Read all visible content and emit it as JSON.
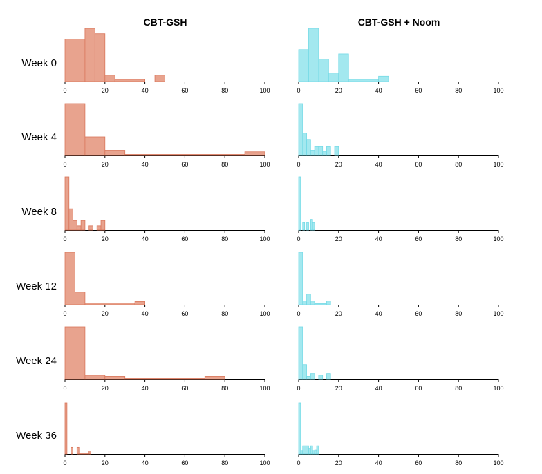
{
  "colors": {
    "cbt_gsh": "#e8a38e",
    "cbt_gsh_edge": "#d9765b",
    "noom": "#a3e8ef",
    "noom_edge": "#74dae6"
  },
  "chart_data": {
    "type": "bar",
    "subtype": "histogram-grid",
    "columns": [
      "CBT-GSH",
      "CBT-GSH + Noom"
    ],
    "rows": [
      "Week 0",
      "Week 4",
      "Week 8",
      "Week 12",
      "Week 24",
      "Week 36"
    ],
    "xlim": [
      0,
      100
    ],
    "xticks": [
      0,
      20,
      40,
      60,
      80,
      100
    ],
    "panels": [
      {
        "row": "Week 0",
        "column": "CBT-GSH",
        "bins": [
          [
            0,
            5,
            0.8
          ],
          [
            5,
            10,
            0.8
          ],
          [
            10,
            15,
            1.0
          ],
          [
            15,
            20,
            0.9
          ],
          [
            20,
            25,
            0.12
          ],
          [
            25,
            40,
            0.04
          ],
          [
            40,
            45,
            0.0
          ],
          [
            45,
            50,
            0.12
          ]
        ]
      },
      {
        "row": "Week 0",
        "column": "CBT-GSH + Noom",
        "bins": [
          [
            0,
            5,
            0.6
          ],
          [
            5,
            10,
            1.0
          ],
          [
            10,
            15,
            0.42
          ],
          [
            15,
            20,
            0.16
          ],
          [
            20,
            25,
            0.52
          ],
          [
            25,
            40,
            0.04
          ],
          [
            40,
            45,
            0.1
          ]
        ]
      },
      {
        "row": "Week 4",
        "column": "CBT-GSH",
        "bins": [
          [
            0,
            10,
            1.0
          ],
          [
            10,
            20,
            0.36
          ],
          [
            20,
            30,
            0.1
          ],
          [
            30,
            90,
            0.02
          ],
          [
            90,
            100,
            0.07
          ]
        ]
      },
      {
        "row": "Week 4",
        "column": "CBT-GSH + Noom",
        "bins": [
          [
            0,
            2,
            1.0
          ],
          [
            2,
            4,
            0.43
          ],
          [
            4,
            6,
            0.31
          ],
          [
            6,
            8,
            0.1
          ],
          [
            8,
            10,
            0.17
          ],
          [
            10,
            12,
            0.17
          ],
          [
            12,
            14,
            0.08
          ],
          [
            14,
            16,
            0.17
          ],
          [
            16,
            18,
            0.0
          ],
          [
            18,
            20,
            0.17
          ]
        ]
      },
      {
        "row": "Week 8",
        "column": "CBT-GSH",
        "bins": [
          [
            0,
            2,
            1.0
          ],
          [
            2,
            4,
            0.4
          ],
          [
            4,
            6,
            0.18
          ],
          [
            6,
            8,
            0.08
          ],
          [
            8,
            10,
            0.18
          ],
          [
            10,
            12,
            0.0
          ],
          [
            12,
            14,
            0.08
          ],
          [
            14,
            16,
            0.0
          ],
          [
            16,
            18,
            0.08
          ],
          [
            18,
            20,
            0.18
          ]
        ]
      },
      {
        "row": "Week 8",
        "column": "CBT-GSH + Noom",
        "bins": [
          [
            0,
            1,
            1.0
          ],
          [
            1,
            2,
            0.0
          ],
          [
            2,
            3,
            0.14
          ],
          [
            3,
            4,
            0.0
          ],
          [
            4,
            5,
            0.14
          ],
          [
            5,
            6,
            0.0
          ],
          [
            6,
            7,
            0.2
          ],
          [
            7,
            8,
            0.14
          ]
        ]
      },
      {
        "row": "Week 12",
        "column": "CBT-GSH",
        "bins": [
          [
            0,
            5,
            1.0
          ],
          [
            5,
            10,
            0.24
          ],
          [
            10,
            35,
            0.03
          ],
          [
            35,
            40,
            0.06
          ]
        ]
      },
      {
        "row": "Week 12",
        "column": "CBT-GSH + Noom",
        "bins": [
          [
            0,
            2,
            1.0
          ],
          [
            2,
            4,
            0.07
          ],
          [
            4,
            6,
            0.2
          ],
          [
            6,
            8,
            0.07
          ],
          [
            8,
            14,
            0.02
          ],
          [
            14,
            16,
            0.07
          ]
        ]
      },
      {
        "row": "Week 24",
        "column": "CBT-GSH",
        "bins": [
          [
            0,
            10,
            1.0
          ],
          [
            10,
            20,
            0.08
          ],
          [
            20,
            30,
            0.06
          ],
          [
            30,
            70,
            0.02
          ],
          [
            70,
            80,
            0.06
          ]
        ]
      },
      {
        "row": "Week 24",
        "column": "CBT-GSH + Noom",
        "bins": [
          [
            0,
            2,
            1.0
          ],
          [
            2,
            4,
            0.28
          ],
          [
            4,
            6,
            0.06
          ],
          [
            6,
            8,
            0.11
          ],
          [
            8,
            10,
            0.0
          ],
          [
            10,
            12,
            0.08
          ],
          [
            12,
            14,
            0.0
          ],
          [
            14,
            16,
            0.11
          ]
        ]
      },
      {
        "row": "Week 36",
        "column": "CBT-GSH",
        "bins": [
          [
            0,
            1,
            1.0
          ],
          [
            1,
            3,
            0.0
          ],
          [
            3,
            4,
            0.13
          ],
          [
            4,
            6,
            0.0
          ],
          [
            6,
            7,
            0.13
          ],
          [
            7,
            12,
            0.02
          ],
          [
            12,
            13,
            0.06
          ]
        ]
      },
      {
        "row": "Week 36",
        "column": "CBT-GSH + Noom",
        "bins": [
          [
            0,
            1,
            1.0
          ],
          [
            1,
            2,
            0.07
          ],
          [
            2,
            5,
            0.16
          ],
          [
            5,
            6,
            0.1
          ],
          [
            6,
            7,
            0.16
          ],
          [
            7,
            8,
            0.07
          ],
          [
            8,
            9,
            0.08
          ],
          [
            9,
            10,
            0.16
          ]
        ]
      }
    ]
  }
}
